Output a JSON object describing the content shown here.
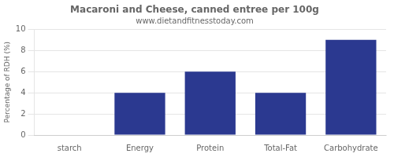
{
  "chart_data": {
    "type": "bar",
    "title": "Macaroni and Cheese, canned entree per 100g",
    "subtitle": "www.dietandfitnesstoday.com",
    "categories": [
      "starch",
      "Energy",
      "Protein",
      "Total-Fat",
      "Carbohydrate"
    ],
    "values": [
      0,
      4,
      6,
      4,
      9
    ],
    "color": "#2b3990",
    "ylabel": "Percentage of RDH (%)",
    "ylim": [
      0,
      10
    ],
    "yticks": [
      0,
      2,
      4,
      6,
      8,
      10
    ],
    "grid": true
  }
}
